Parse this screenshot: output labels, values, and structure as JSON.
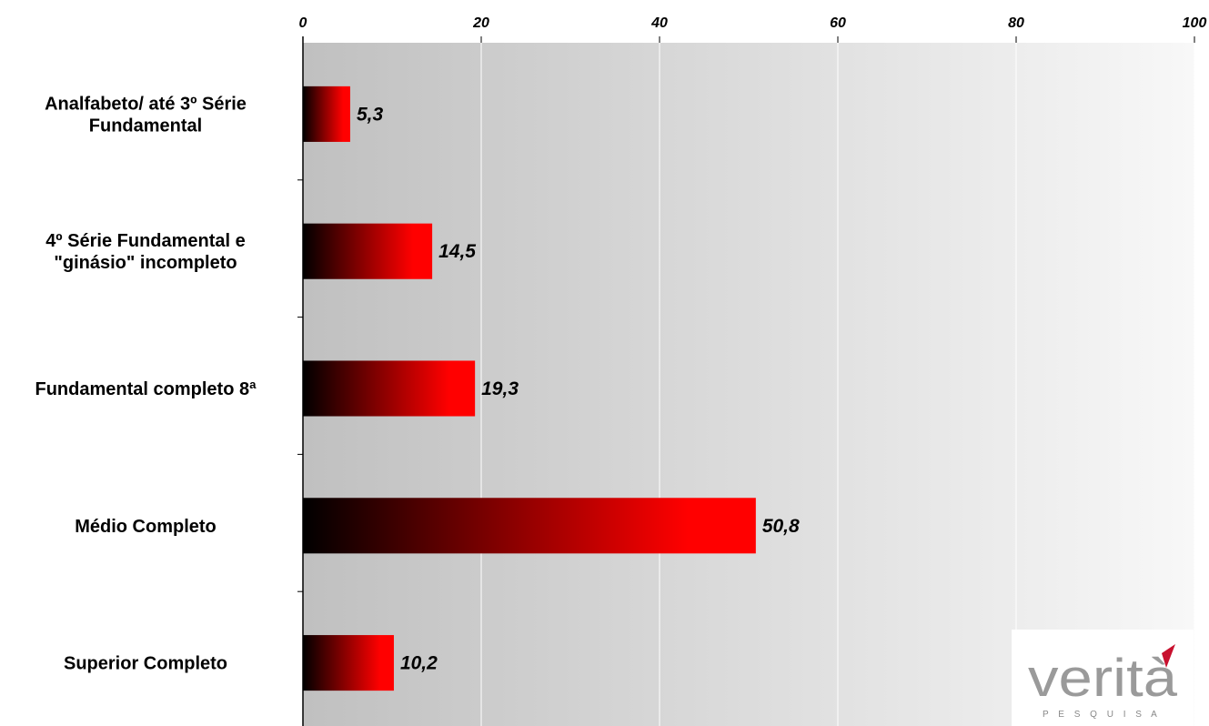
{
  "chart_data": {
    "type": "bar",
    "orientation": "horizontal",
    "categories": [
      [
        "Analfabeto/ até 3º Série",
        "Fundamental"
      ],
      [
        "4º Série Fundamental e",
        "\"ginásio\" incompleto"
      ],
      [
        "Fundamental completo 8ª"
      ],
      [
        "Médio Completo"
      ],
      [
        "Superior Completo"
      ]
    ],
    "values": [
      5.3,
      14.5,
      19.3,
      50.8,
      10.2
    ],
    "value_labels": [
      "5,3",
      "14,5",
      "19,3",
      "50,8",
      "10,2"
    ],
    "xlim": [
      0,
      100
    ],
    "x_ticks": [
      0,
      20,
      40,
      60,
      80,
      100
    ],
    "x_tick_labels": [
      "0",
      "20",
      "40",
      "60",
      "80",
      "100"
    ],
    "x_axis_position": "top",
    "grid": true,
    "bar_color_start": "#000000",
    "bar_color_end": "#ff0000"
  },
  "logo": {
    "name": "verità",
    "tagline": "P E S Q U I S A",
    "accent_color": "#c8102e"
  }
}
